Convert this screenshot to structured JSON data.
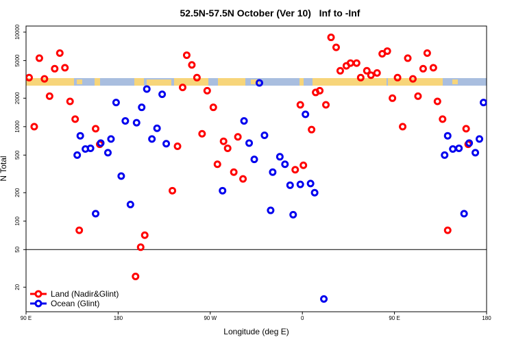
{
  "chart_data": {
    "type": "scatter",
    "title": "52.5N-57.5N October (Ver 10)   Inf to -Inf",
    "x_label": "Longitude (deg E)",
    "y_label": "N Total",
    "log_y": true,
    "hline": 50,
    "legend": "bottomleft",
    "xlim": [
      90,
      540
    ],
    "xticks": [
      {
        "value": 90,
        "label": "90 E"
      },
      180,
      {
        "value": 270,
        "label": "90 W"
      },
      {
        "value": 360,
        "label": "0"
      },
      {
        "value": 450,
        "label": "90 E"
      },
      {
        "value": 540,
        "label": "180"
      }
    ],
    "ylim": [
      11,
      11600
    ],
    "yticks": [
      20,
      50,
      100,
      200,
      500,
      1000,
      2000,
      5000,
      10000
    ],
    "series": [
      {
        "name": "Land (Nadir&Glint)",
        "color": "#ff0000",
        "x": [
          93,
          98,
          103,
          108,
          113,
          118,
          123,
          128,
          133,
          138,
          142,
          158,
          162,
          197,
          202,
          206,
          233,
          238,
          243,
          247,
          252,
          257,
          262,
          267,
          273,
          277,
          283,
          287,
          293,
          297,
          302,
          353,
          358,
          361,
          369,
          373,
          377,
          383,
          388,
          393,
          397,
          403,
          407,
          413,
          417,
          423,
          427,
          433,
          438,
          443,
          448,
          453,
          458,
          463,
          468,
          473,
          478,
          482,
          488,
          492,
          497,
          502,
          520,
          522
        ],
        "values": [
          3300,
          1000,
          5300,
          3200,
          2100,
          4100,
          6000,
          4200,
          1850,
          1200,
          80,
          950,
          650,
          26,
          53,
          71,
          210,
          620,
          2600,
          5700,
          4500,
          3300,
          840,
          2400,
          1600,
          400,
          700,
          590,
          330,
          780,
          280,
          350,
          1700,
          390,
          930,
          2300,
          2400,
          1700,
          8800,
          6900,
          3900,
          4400,
          4700,
          4700,
          3300,
          3900,
          3500,
          3700,
          5900,
          6300,
          2000,
          3300,
          1000,
          5300,
          3200,
          2100,
          4100,
          6000,
          4200,
          1850,
          1200,
          80,
          950,
          650
        ]
      },
      {
        "name": "Ocean (Glint)",
        "color": "#0000ee",
        "x": [
          140,
          143,
          148,
          153,
          158,
          163,
          170,
          173,
          178,
          183,
          187,
          192,
          198,
          203,
          208,
          213,
          218,
          223,
          227,
          282,
          303,
          308,
          313,
          318,
          323,
          329,
          331,
          338,
          343,
          348,
          351,
          358,
          363,
          368,
          372,
          381,
          499,
          502,
          507,
          513,
          518,
          523,
          529,
          533,
          537
        ],
        "values": [
          500,
          800,
          580,
          590,
          120,
          670,
          530,
          740,
          1800,
          300,
          1150,
          150,
          1100,
          1600,
          2500,
          740,
          960,
          2200,
          660,
          210,
          1150,
          670,
          450,
          2900,
          810,
          130,
          330,
          480,
          400,
          240,
          117,
          245,
          1350,
          250,
          200,
          15,
          500,
          800,
          580,
          590,
          120,
          670,
          530,
          740,
          1800
        ]
      }
    ]
  }
}
